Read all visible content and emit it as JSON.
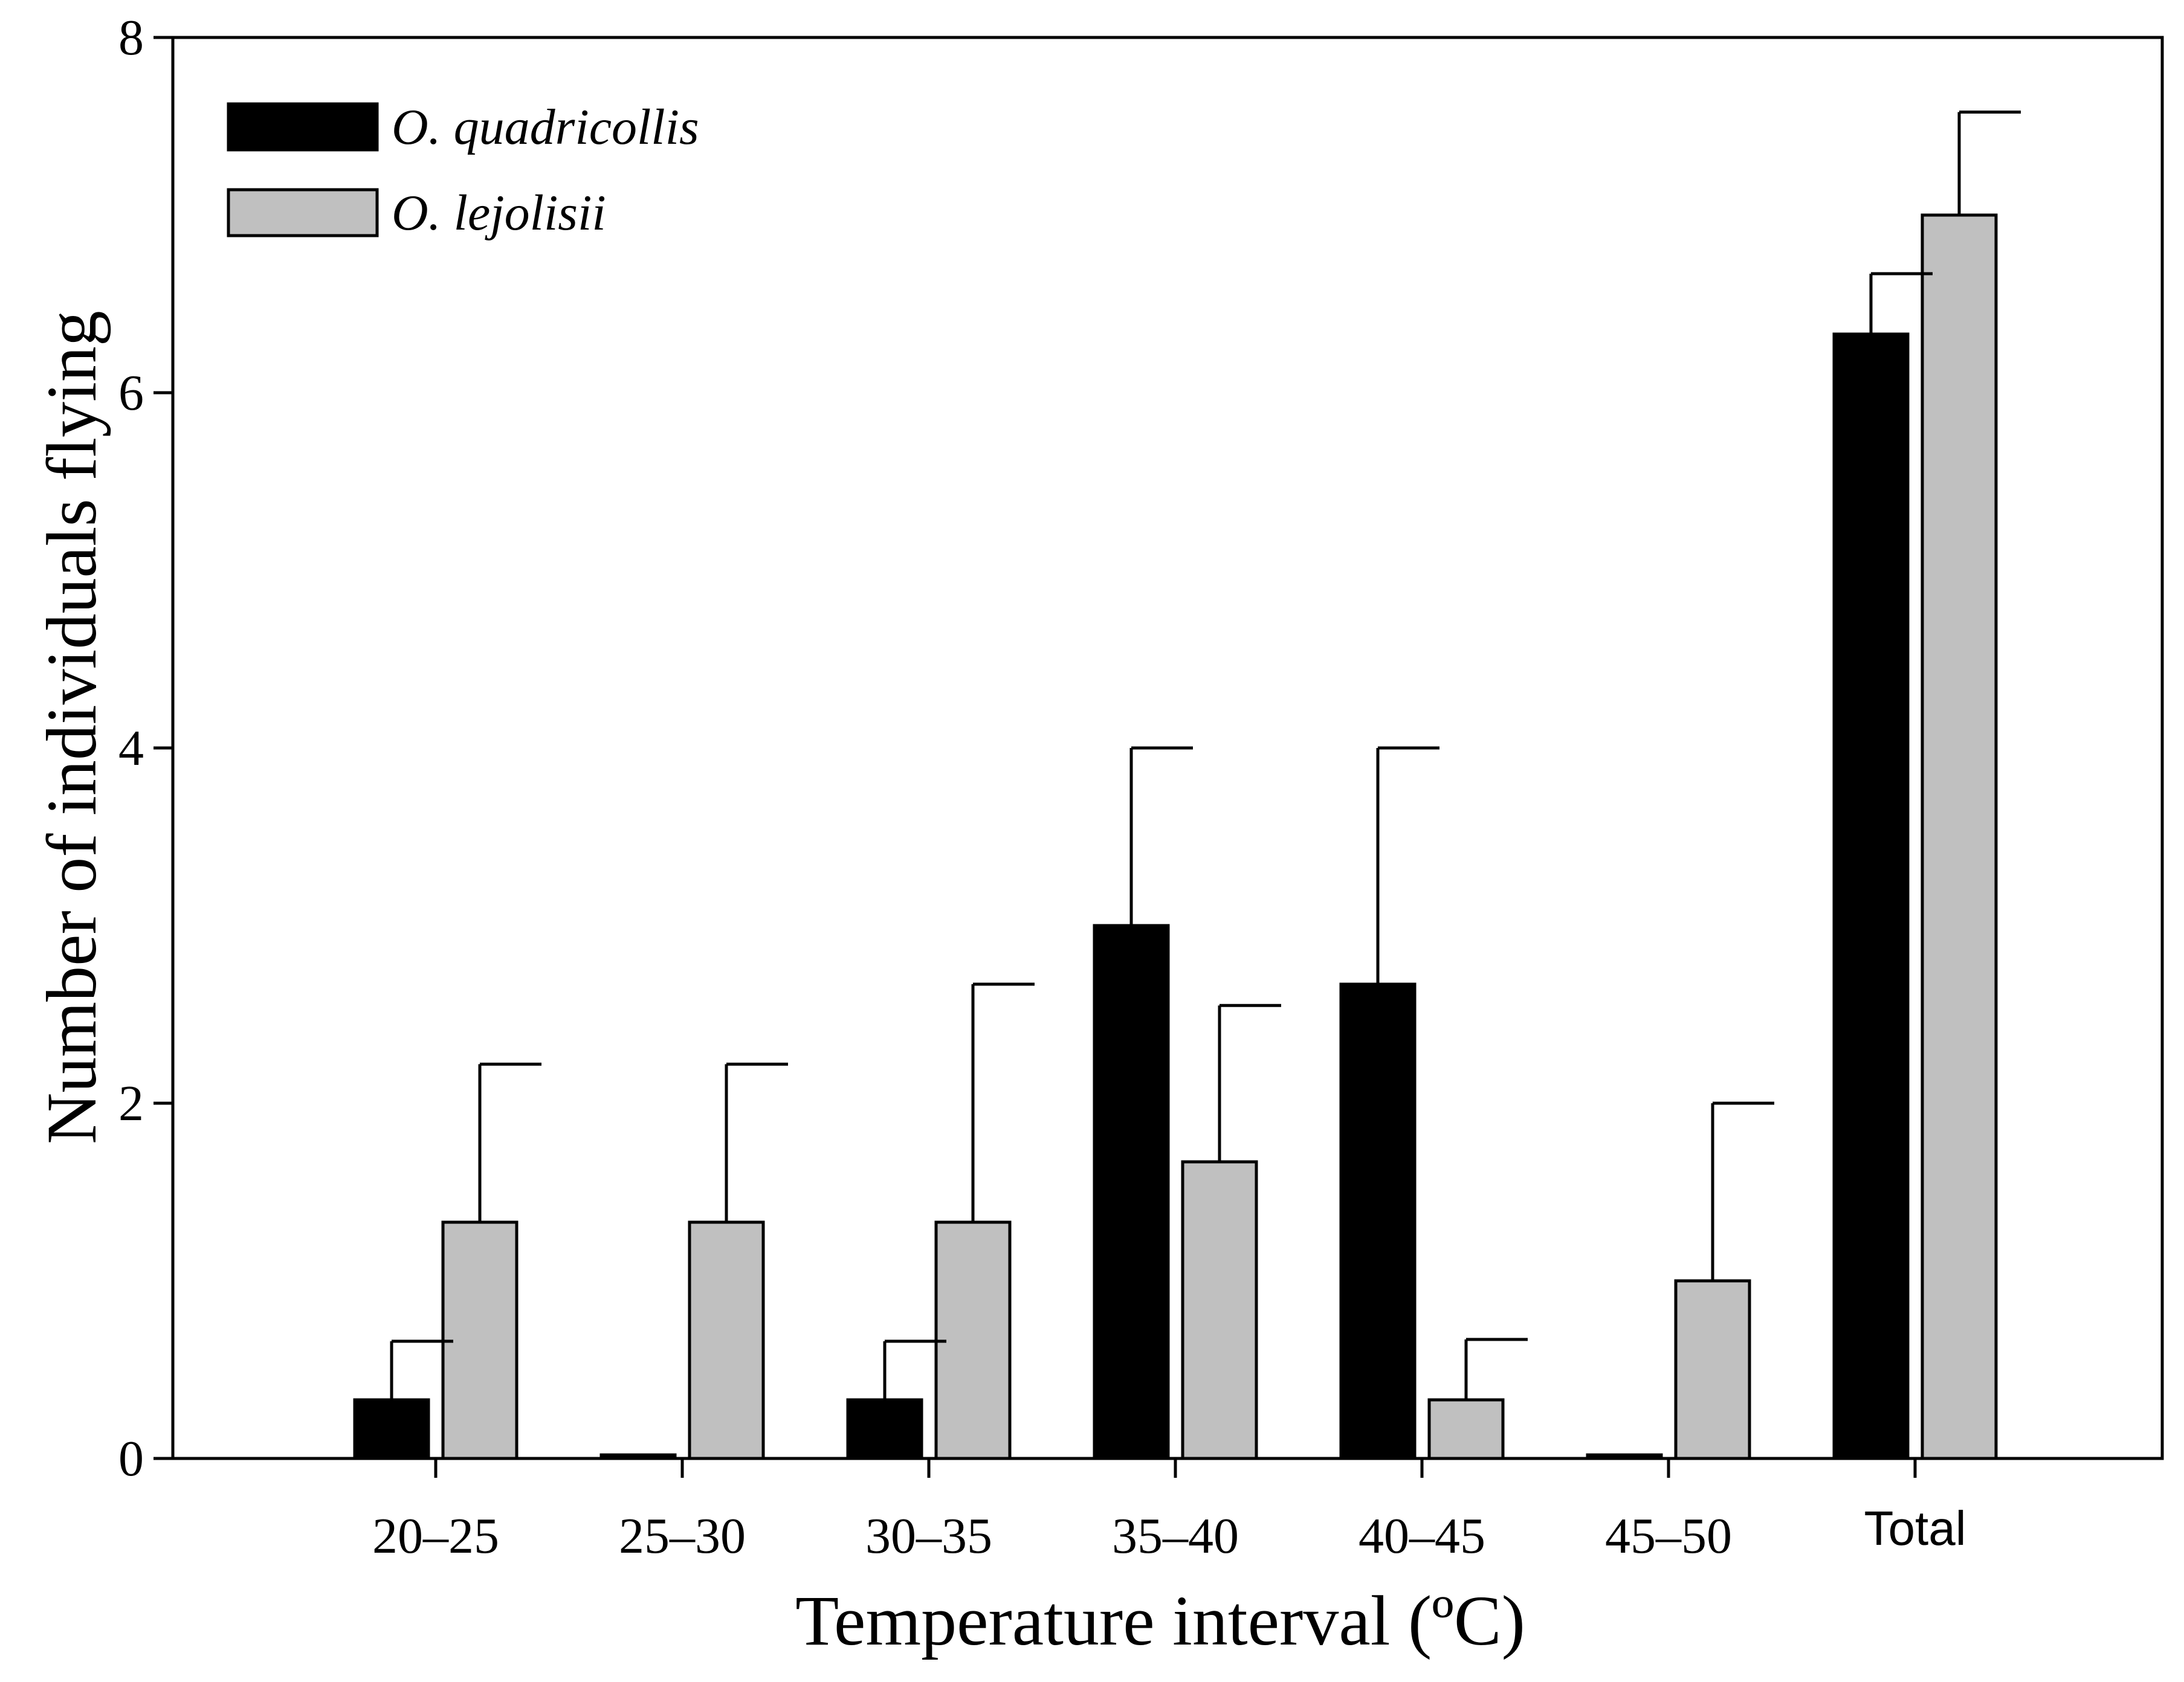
{
  "chart_data": {
    "type": "bar",
    "title": "",
    "xlabel": "Temperature interval (ºC)",
    "ylabel": "Number of individuals flying",
    "ylim": [
      0,
      8
    ],
    "yticks": [
      0,
      2,
      4,
      6,
      8
    ],
    "categories": [
      "20–25",
      "25–30",
      "30–35",
      "35–40",
      "40–45",
      "45–50",
      "Total"
    ],
    "series": [
      {
        "name": "O. quadricollis",
        "color": "#000000",
        "values": [
          0.33,
          0.02,
          0.33,
          3.0,
          2.67,
          0.02,
          6.33
        ],
        "error_upper": [
          0.33,
          0,
          0.33,
          1.0,
          1.33,
          0,
          0.34
        ]
      },
      {
        "name": "O. lejolisii",
        "color": "#c0c0c0",
        "values": [
          1.33,
          1.33,
          1.33,
          1.67,
          0.33,
          1.0,
          7.0
        ],
        "error_upper": [
          0.89,
          0.89,
          1.34,
          0.88,
          0.34,
          1.0,
          0.58
        ]
      }
    ],
    "grid": false,
    "legend_position": "top-left"
  }
}
